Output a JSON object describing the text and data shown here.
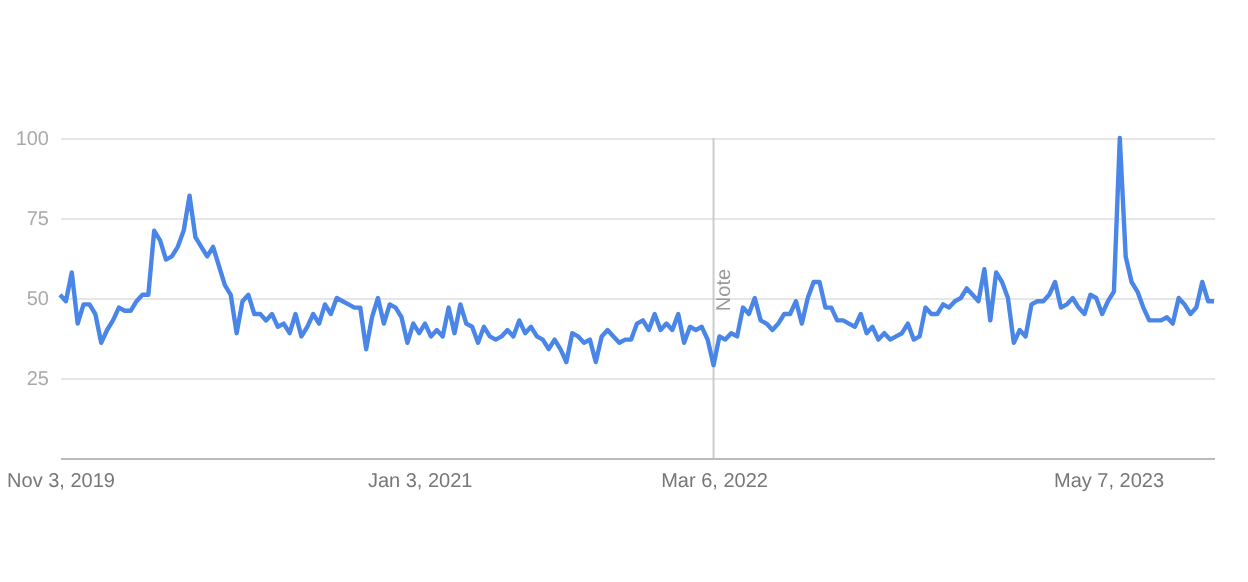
{
  "chart_data": {
    "type": "line",
    "categories": [
      "Nov 3, 2019",
      null,
      null,
      null,
      null,
      null,
      null,
      null,
      null,
      null,
      null,
      null,
      null,
      null,
      null,
      null,
      null,
      null,
      null,
      null,
      null,
      null,
      null,
      null,
      null,
      null,
      null,
      null,
      null,
      null,
      null,
      null,
      null,
      null,
      null,
      null,
      null,
      null,
      null,
      null,
      null,
      null,
      null,
      null,
      null,
      null,
      null,
      null,
      null,
      null,
      null,
      null,
      null,
      null,
      null,
      null,
      null,
      null,
      null,
      null,
      null,
      "Jan 3, 2021",
      null,
      null,
      null,
      null,
      null,
      null,
      null,
      null,
      null,
      null,
      null,
      null,
      null,
      null,
      null,
      null,
      null,
      null,
      null,
      null,
      null,
      null,
      null,
      null,
      null,
      null,
      null,
      null,
      null,
      null,
      null,
      null,
      null,
      null,
      null,
      null,
      null,
      null,
      null,
      null,
      null,
      null,
      null,
      null,
      null,
      null,
      null,
      null,
      null,
      "Mar 6, 2022",
      null,
      null,
      null,
      null,
      null,
      null,
      null,
      null,
      null,
      null,
      null,
      null,
      null,
      null,
      null,
      null,
      null,
      null,
      null,
      null,
      null,
      null,
      null,
      null,
      null,
      null,
      null,
      null,
      null,
      null,
      null,
      null,
      null,
      null,
      null,
      null,
      null,
      null,
      null,
      null,
      null,
      null,
      null,
      null,
      null,
      null,
      null,
      null,
      null,
      null,
      null,
      null,
      null,
      null,
      null,
      null,
      null,
      null,
      null,
      null,
      null,
      null,
      null,
      null,
      null,
      null,
      "May 7, 2023",
      null,
      null,
      null,
      null,
      null,
      null,
      null,
      null,
      null,
      null,
      null,
      null,
      null,
      null,
      null,
      null,
      null,
      null
    ],
    "series": [
      {
        "color": "#4a86e8",
        "values": [
          51,
          49,
          58,
          42,
          48,
          48,
          45,
          36,
          40,
          43,
          47,
          46,
          46,
          49,
          51,
          51,
          71,
          68,
          62,
          63,
          66,
          71,
          82,
          69,
          66,
          63,
          66,
          60,
          54,
          51,
          39,
          49,
          51,
          45,
          45,
          43,
          45,
          41,
          42,
          39,
          45,
          38,
          41,
          45,
          42,
          48,
          45,
          50,
          49,
          48,
          47,
          47,
          34,
          44,
          50,
          42,
          48,
          47,
          44,
          36,
          42,
          39,
          42,
          38,
          40,
          38,
          47,
          39,
          48,
          42,
          41,
          36,
          41,
          38,
          37,
          38,
          40,
          38,
          43,
          39,
          41,
          38,
          37,
          34,
          37,
          34,
          30,
          39,
          38,
          36,
          37,
          30,
          38,
          40,
          38,
          36,
          37,
          37,
          42,
          43,
          40,
          45,
          40,
          42,
          40,
          45,
          36,
          41,
          40,
          41,
          37,
          29,
          38,
          37,
          39,
          38,
          47,
          45,
          50,
          43,
          42,
          40,
          42,
          45,
          45,
          49,
          42,
          50,
          55,
          55,
          47,
          47,
          43,
          43,
          42,
          41,
          45,
          39,
          41,
          37,
          39,
          37,
          38,
          39,
          42,
          37,
          38,
          47,
          45,
          45,
          48,
          47,
          49,
          50,
          53,
          51,
          49,
          59,
          43,
          58,
          55,
          50,
          36,
          40,
          38,
          48,
          49,
          49,
          51,
          55,
          47,
          48,
          50,
          47,
          45,
          51,
          50,
          45,
          49,
          52,
          100,
          63,
          55,
          52,
          47,
          43,
          43,
          43,
          44,
          42,
          50,
          48,
          45,
          47,
          55,
          49,
          49
        ]
      }
    ],
    "ylim": [
      0,
      100
    ],
    "yticks": [
      25,
      50,
      75,
      100
    ],
    "grid": "y",
    "line_style": "solid",
    "ref_lines": [
      {
        "axis": "x",
        "value": "Mar 6, 2022",
        "label": "Note",
        "color": "#cccccc"
      }
    ]
  }
}
